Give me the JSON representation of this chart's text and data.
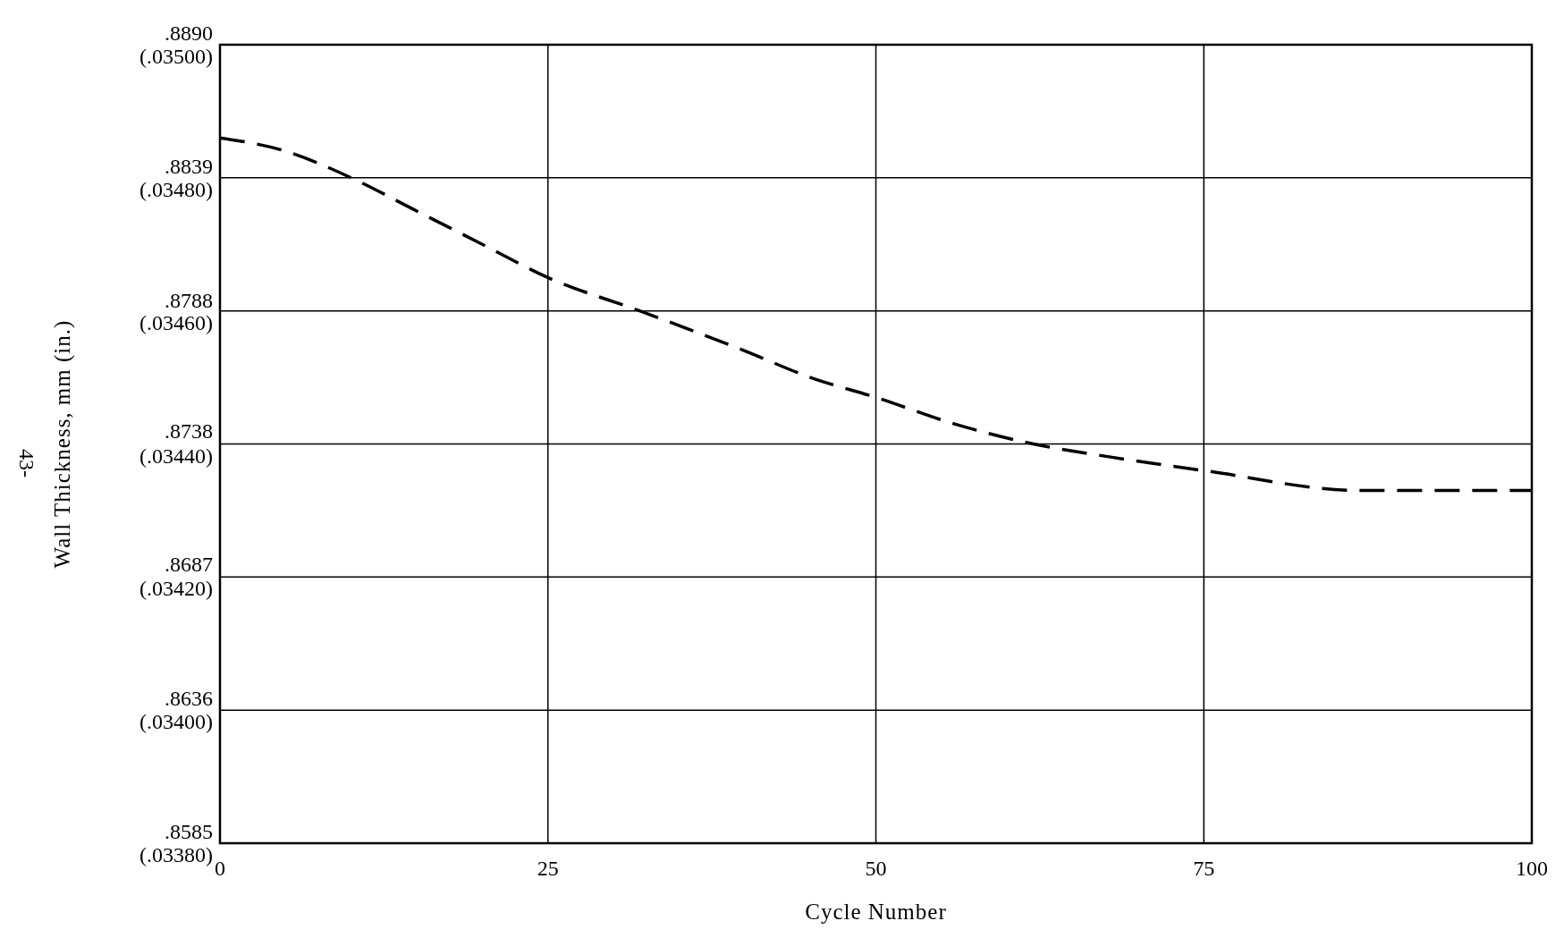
{
  "chart_data": {
    "type": "line",
    "xlabel": "Cycle Number",
    "ylabel": "Wall Thickness, mm (in.)",
    "x": [
      0,
      5,
      10,
      15,
      20,
      25,
      32,
      40,
      45,
      50,
      56,
      62,
      68,
      75,
      87,
      100
    ],
    "values": [
      0.03486,
      0.03484,
      0.0348,
      0.03475,
      0.0347,
      0.03465,
      0.0346,
      0.03454,
      0.0345,
      0.03447,
      0.03443,
      0.0344,
      0.03438,
      0.03436,
      0.03433,
      0.03433
    ],
    "color": "#000000",
    "line_style": "dashed",
    "marker": "none",
    "xlim": [
      0,
      100
    ],
    "xticks": [
      0,
      25,
      50,
      75,
      100
    ],
    "y2lim": [
      0.8585,
      0.889
    ],
    "y2ticks": [
      {
        "value": 0.889,
        "label": ".8890"
      },
      {
        "value": 0.8839,
        "label": ".8839"
      },
      {
        "value": 0.8788,
        "label": ".8788"
      },
      {
        "value": 0.8738,
        "label": ".8738"
      },
      {
        "value": 0.8687,
        "label": ".8687"
      },
      {
        "value": 0.8636,
        "label": ".8636"
      },
      {
        "value": 0.8585,
        "label": ".8585"
      }
    ],
    "ylim": [
      0.0338,
      0.035
    ],
    "yticks": [
      {
        "value": 0.035,
        "label": "(.03500)"
      },
      {
        "value": 0.0348,
        "label": "(.03480)"
      },
      {
        "value": 0.0346,
        "label": "(.03460)"
      },
      {
        "value": 0.0344,
        "label": "(.03440)"
      },
      {
        "value": 0.0342,
        "label": "(.03420)"
      },
      {
        "value": 0.034,
        "label": "(.03400)"
      },
      {
        "value": 0.0338,
        "label": "(.03380)"
      }
    ],
    "grid": true,
    "annotations": [
      "43-"
    ]
  }
}
